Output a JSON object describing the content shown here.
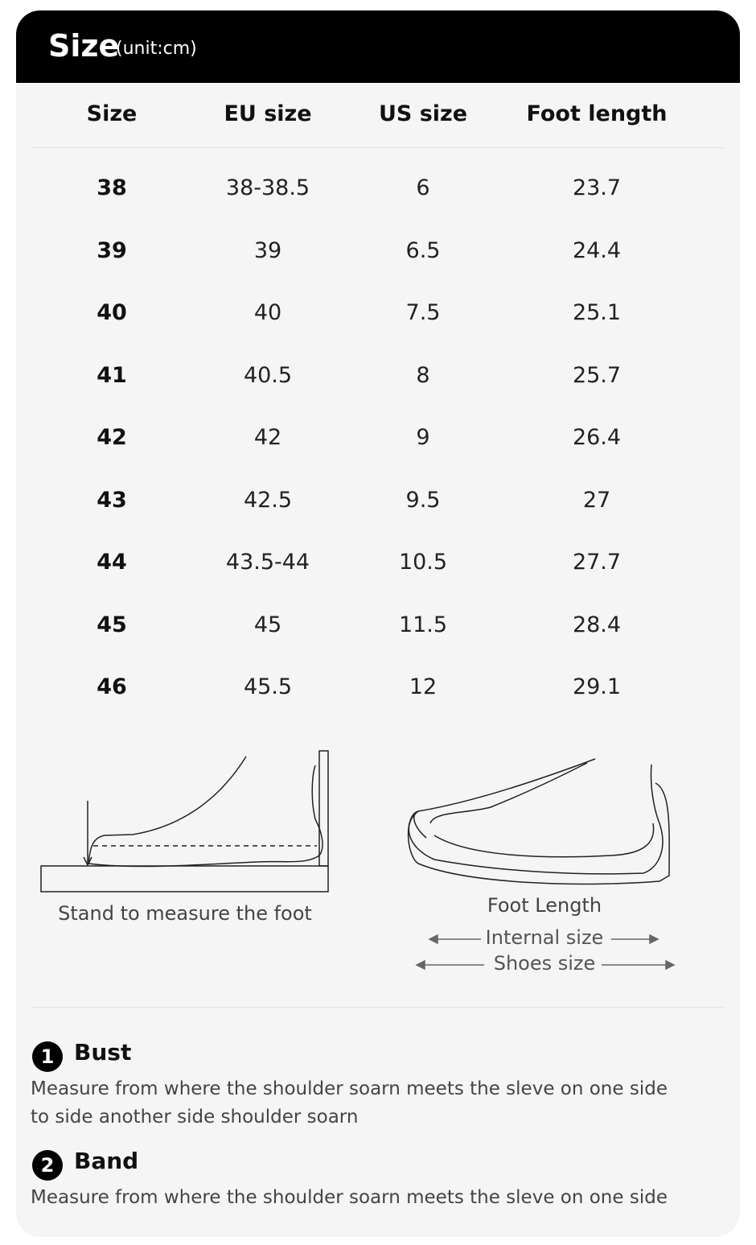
{
  "header": {
    "title": "Size",
    "unit": "(unit:cm)"
  },
  "table": {
    "columns": [
      "Size",
      "EU size",
      "US size",
      "Foot length"
    ],
    "rows": [
      [
        "38",
        "38-38.5",
        "6",
        "23.7"
      ],
      [
        "39",
        "39",
        "6.5",
        "24.4"
      ],
      [
        "40",
        "40",
        "7.5",
        "25.1"
      ],
      [
        "41",
        "40.5",
        "8",
        "25.7"
      ],
      [
        "42",
        "42",
        "9",
        "26.4"
      ],
      [
        "43",
        "42.5",
        "9.5",
        "27"
      ],
      [
        "44",
        "43.5-44",
        "10.5",
        "27.7"
      ],
      [
        "45",
        "45",
        "11.5",
        "28.4"
      ],
      [
        "46",
        "45.5",
        "12",
        "29.1"
      ]
    ]
  },
  "diagrams": {
    "stand_caption": "Stand to measure the foot",
    "foot_length": "Foot Length",
    "internal_size": "Internal size",
    "shoes_size": "Shoes size"
  },
  "notes": [
    {
      "number": "1",
      "title": "Bust",
      "lines": [
        "Measure from where the shoulder soarn meets the sleve on one side",
        "to side another side shoulder soarn"
      ]
    },
    {
      "number": "2",
      "title": "Band",
      "lines": [
        "Measure from where the shoulder soarn meets the sleve on one side"
      ]
    }
  ]
}
